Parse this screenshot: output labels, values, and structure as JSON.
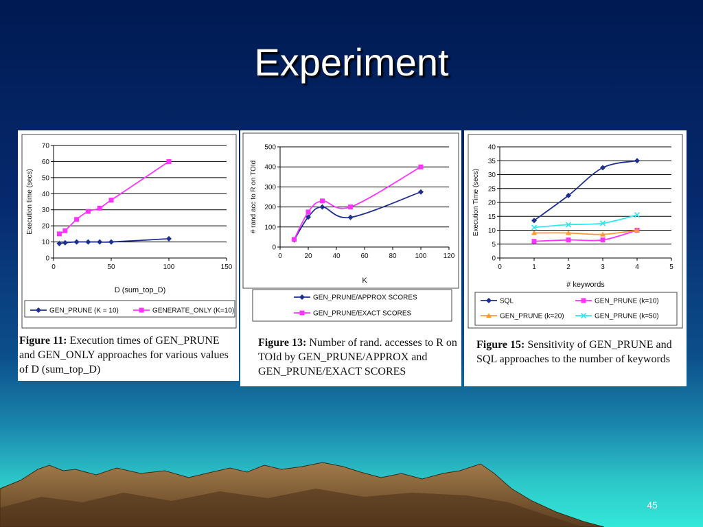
{
  "slide": {
    "title": "Experiment",
    "page_number": "45"
  },
  "colors": {
    "blue_series": "#1f2f8f",
    "magenta_series": "#ff33ff",
    "orange_series": "#ff9933",
    "cyan_series": "#33e6ee"
  },
  "figures": [
    {
      "caption_bold": "Figure 11:",
      "caption_rest": " Execution times of GEN_PRUNE and GEN_ONLY approaches for various values of D (sum_top_D)"
    },
    {
      "caption_bold": "Figure 13:",
      "caption_rest": " Number of rand. accesses to R on TOId by GEN_PRUNE/APPROX and GEN_PRUNE/EXACT SCORES"
    },
    {
      "caption_bold": "Figure 15:",
      "caption_rest": " Sensitivity of GEN_PRUNE and SQL approaches to the number of keywords"
    }
  ],
  "chart_data": [
    {
      "type": "line",
      "xlabel": "D (sum_top_D)",
      "ylabel": "Execution time (secs)",
      "xlim": [
        0,
        150
      ],
      "ylim": [
        0,
        70
      ],
      "xticks": [
        0,
        50,
        100,
        150
      ],
      "yticks": [
        0,
        10,
        20,
        30,
        40,
        50,
        60,
        70
      ],
      "grid": true,
      "legend": "bottom",
      "series": [
        {
          "name": "GEN_PRUNE (K = 10)",
          "color": "#1f2f8f",
          "marker": "diamond",
          "x": [
            5,
            10,
            20,
            30,
            40,
            50,
            100
          ],
          "y": [
            9,
            9.5,
            10,
            10,
            10,
            10,
            12
          ]
        },
        {
          "name": "GENERATE_ONLY (K=10)",
          "color": "#ff33ff",
          "marker": "square",
          "x": [
            5,
            10,
            20,
            30,
            40,
            50,
            100
          ],
          "y": [
            15,
            17,
            24,
            29,
            31,
            36,
            60
          ]
        }
      ]
    },
    {
      "type": "line",
      "xlabel": "K",
      "ylabel": "# rand acc to R on TOId",
      "xlim": [
        0,
        120
      ],
      "ylim": [
        0,
        500
      ],
      "xticks": [
        0,
        20,
        40,
        60,
        80,
        100,
        120
      ],
      "yticks": [
        0,
        100,
        200,
        300,
        400,
        500
      ],
      "grid": true,
      "legend": "bottom",
      "series": [
        {
          "name": "GEN_PRUNE/APPROX SCORES",
          "color": "#1f2f8f",
          "marker": "diamond",
          "x": [
            10,
            20,
            30,
            50,
            100
          ],
          "y": [
            35,
            150,
            200,
            148,
            275
          ]
        },
        {
          "name": "GEN_PRUNE/EXACT SCORES",
          "color": "#ff33ff",
          "marker": "square",
          "x": [
            10,
            20,
            30,
            50,
            100
          ],
          "y": [
            38,
            175,
            230,
            200,
            400
          ]
        }
      ]
    },
    {
      "type": "line",
      "xlabel": "# keywords",
      "ylabel": "Execution Time (secs)",
      "xlim": [
        0,
        5
      ],
      "ylim": [
        0,
        40
      ],
      "xticks": [
        0,
        1,
        2,
        3,
        4,
        5
      ],
      "yticks": [
        0,
        5,
        10,
        15,
        20,
        25,
        30,
        35,
        40
      ],
      "grid": true,
      "legend": "bottom",
      "series": [
        {
          "name": "SQL",
          "color": "#1f2f8f",
          "marker": "diamond",
          "x": [
            1,
            2,
            3,
            4
          ],
          "y": [
            13.5,
            22.5,
            32.5,
            35
          ]
        },
        {
          "name": "GEN_PRUNE (k=10)",
          "color": "#ff33ff",
          "marker": "square",
          "x": [
            1,
            2,
            3,
            4
          ],
          "y": [
            6,
            6.5,
            6.5,
            10
          ]
        },
        {
          "name": "GEN_PRUNE (k=20)",
          "color": "#ff9933",
          "marker": "triangle",
          "x": [
            1,
            2,
            3,
            4
          ],
          "y": [
            9,
            9,
            8.5,
            10
          ]
        },
        {
          "name": "GEN_PRUNE (k=50)",
          "color": "#33e6ee",
          "marker": "x",
          "x": [
            1,
            2,
            3,
            4
          ],
          "y": [
            11,
            12,
            12.5,
            15.5
          ]
        }
      ]
    }
  ]
}
